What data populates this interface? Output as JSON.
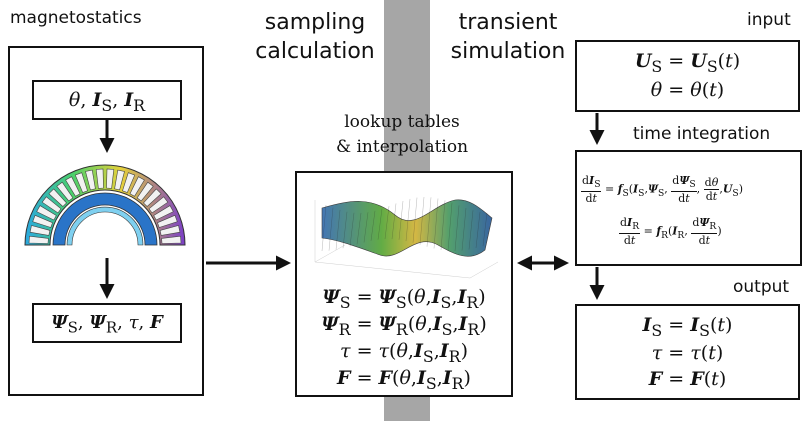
{
  "labels": {
    "magnetostatics": "magnetostatics",
    "sampling_line1": "sampling",
    "sampling_line2": "calculation",
    "transient_line1": "transient",
    "transient_line2": "simulation",
    "input": "input",
    "time_integration": "time integration",
    "output": "output",
    "lookup_line1": "lookup tables",
    "lookup_line2": "& interpolation"
  },
  "symbols": {
    "theta": "θ",
    "I": "I",
    "U": "U",
    "Psi": "Ψ",
    "tau": "τ",
    "F": "F",
    "S": "S",
    "R": "R",
    "t": "t",
    "d": "d",
    "f": "f",
    "comma": ",",
    "equals": " = ",
    "lp": "(",
    "rp": ")"
  },
  "colors": {
    "stroke": "#111111",
    "band": "#a6a6a6"
  },
  "icons": {
    "motor": "motor-cross-section-icon",
    "surface": "surface-plot-icon"
  }
}
